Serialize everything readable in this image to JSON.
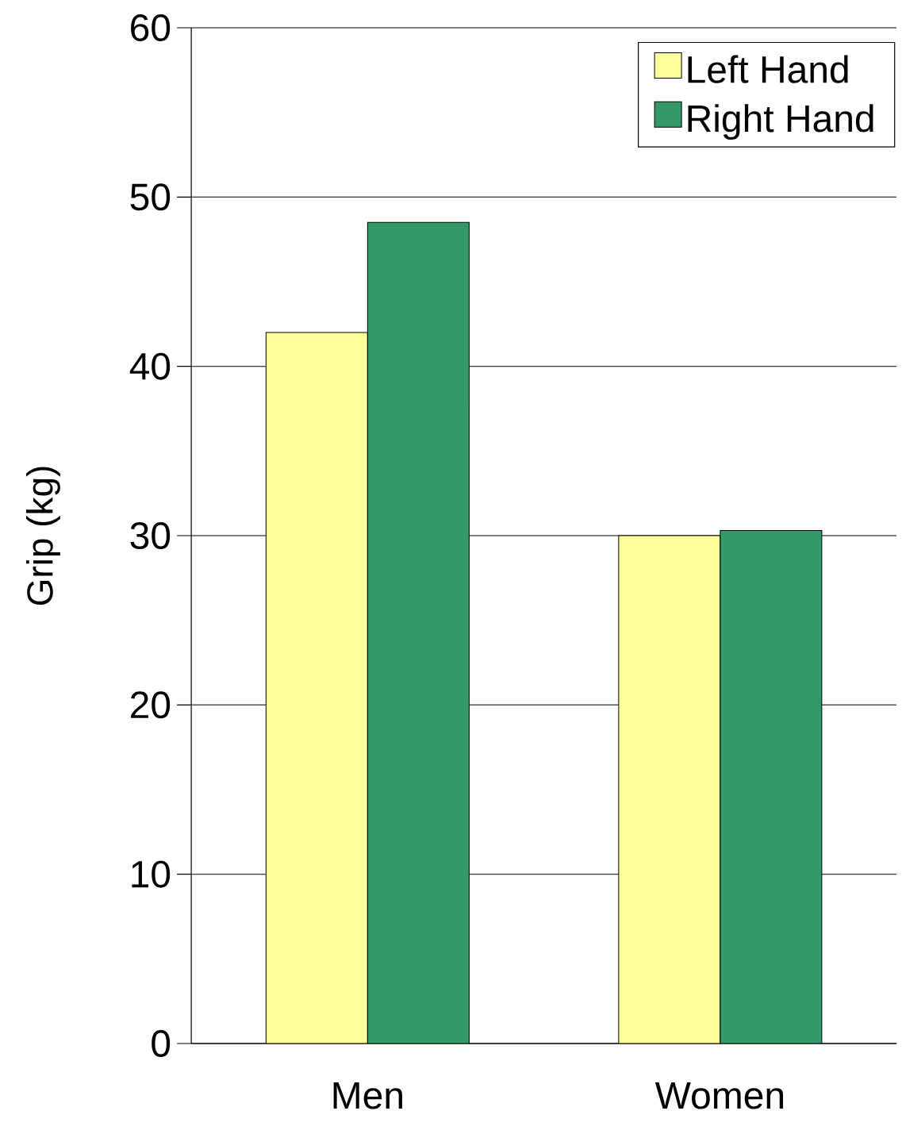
{
  "chart_data": {
    "type": "bar",
    "ylabel": "Grip (kg)",
    "categories": [
      "Men",
      "Women"
    ],
    "series": [
      {
        "name": "Left Hand",
        "color": "#ffff99",
        "values": [
          42,
          30
        ]
      },
      {
        "name": "Right Hand",
        "color": "#339966",
        "values": [
          48.5,
          30.3
        ]
      }
    ],
    "ylim": [
      0,
      60
    ],
    "yticks": [
      0,
      10,
      20,
      30,
      40,
      50,
      60
    ],
    "grid": "y",
    "legend": "top right"
  }
}
